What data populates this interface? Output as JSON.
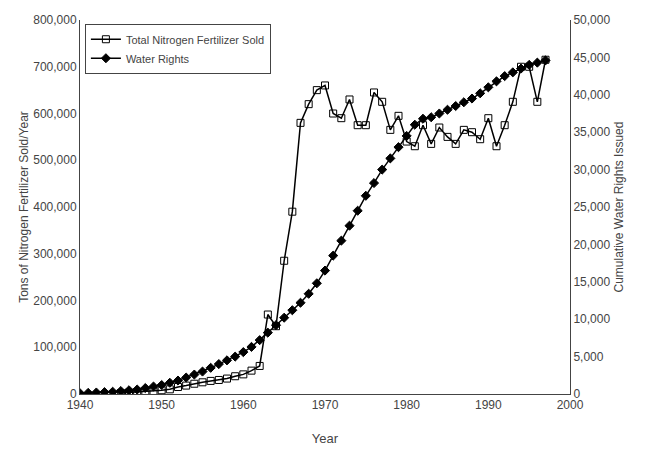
{
  "chart_data": {
    "type": "line",
    "xlabel": "Year",
    "ylabel": "Tons of Nitrogen Fertilizer Sold/Year",
    "y2label": "Cumulative Water Rights Issued",
    "xlim": [
      1940,
      2000
    ],
    "xticks": [
      1940,
      1950,
      1960,
      1970,
      1980,
      1990,
      2000
    ],
    "ylim": [
      0,
      800000
    ],
    "yticks": [
      0,
      {
        "value": 100000,
        "label": "100,000"
      },
      {
        "value": 200000,
        "label": "200,000"
      },
      {
        "value": 300000,
        "label": "300,000"
      },
      {
        "value": 400000,
        "label": "400,000"
      },
      {
        "value": 500000,
        "label": "500,000"
      },
      {
        "value": 600000,
        "label": "600,000"
      },
      {
        "value": 700000,
        "label": "700,000"
      },
      {
        "value": 800000,
        "label": "800,000"
      }
    ],
    "y2lim": [
      0,
      50000
    ],
    "y2ticks": [
      0,
      {
        "value": 5000,
        "label": "5,000"
      },
      {
        "value": 10000,
        "label": "10,000"
      },
      {
        "value": 15000,
        "label": "15,000"
      },
      {
        "value": 20000,
        "label": "20,000"
      },
      {
        "value": 25000,
        "label": "25,000"
      },
      {
        "value": 30000,
        "label": "30,000"
      },
      {
        "value": 35000,
        "label": "35,000"
      },
      {
        "value": 40000,
        "label": "40,000"
      },
      {
        "value": 45000,
        "label": "45,000"
      },
      {
        "value": 50000,
        "label": "50,000"
      }
    ],
    "grid": false,
    "legend": "upper left",
    "series": [
      {
        "name": "Total Nitrogen Fertilizer Sold",
        "color": "black",
        "marker": "square-open",
        "x": [
          1945,
          1946,
          1947,
          1948,
          1949,
          1950,
          1951,
          1952,
          1953,
          1954,
          1955,
          1956,
          1957,
          1958,
          1959,
          1960,
          1961,
          1962,
          1963,
          1964,
          1965,
          1966,
          1967,
          1968,
          1969,
          1970,
          1971,
          1972,
          1973,
          1974,
          1975,
          1976,
          1977,
          1978,
          1979,
          1980,
          1981,
          1982,
          1983,
          1984,
          1985,
          1986,
          1987,
          1988,
          1989,
          1990,
          1991,
          1992,
          1993,
          1994,
          1995,
          1996,
          1997
        ],
        "values": [
          2000,
          3000,
          4000,
          5000,
          6000,
          8000,
          10000,
          15000,
          18000,
          22000,
          25000,
          28000,
          30000,
          33000,
          38000,
          42000,
          50000,
          60000,
          170000,
          145000,
          285000,
          390000,
          580000,
          620000,
          650000,
          660000,
          600000,
          590000,
          630000,
          575000,
          575000,
          645000,
          625000,
          565000,
          595000,
          540000,
          530000,
          575000,
          535000,
          570000,
          550000,
          535000,
          565000,
          560000,
          545000,
          590000,
          530000,
          575000,
          625000,
          700000,
          700000,
          625000,
          715000
        ]
      },
      {
        "name": "Water Rights",
        "color": "black",
        "marker": "diamond",
        "axis": "y2",
        "x": [
          1940,
          1941,
          1942,
          1943,
          1944,
          1945,
          1946,
          1947,
          1948,
          1949,
          1950,
          1951,
          1952,
          1953,
          1954,
          1955,
          1956,
          1957,
          1958,
          1959,
          1960,
          1961,
          1962,
          1963,
          1964,
          1965,
          1966,
          1967,
          1968,
          1969,
          1970,
          1971,
          1972,
          1973,
          1974,
          1975,
          1976,
          1977,
          1978,
          1979,
          1980,
          1981,
          1982,
          1983,
          1984,
          1985,
          1986,
          1987,
          1988,
          1989,
          1990,
          1991,
          1992,
          1993,
          1994,
          1995,
          1996,
          1997
        ],
        "values": [
          100,
          150,
          200,
          250,
          300,
          400,
          500,
          600,
          800,
          1000,
          1200,
          1500,
          1800,
          2200,
          2600,
          3000,
          3500,
          4000,
          4500,
          5000,
          5600,
          6300,
          7200,
          8200,
          9200,
          10200,
          11200,
          12200,
          13400,
          14800,
          16500,
          18500,
          20500,
          22500,
          24500,
          26500,
          28200,
          30000,
          31500,
          33000,
          34500,
          36000,
          36800,
          37000,
          37500,
          38000,
          38500,
          39000,
          39500,
          40200,
          41000,
          41800,
          42500,
          43000,
          43500,
          44000,
          44300,
          44600
        ]
      }
    ]
  }
}
